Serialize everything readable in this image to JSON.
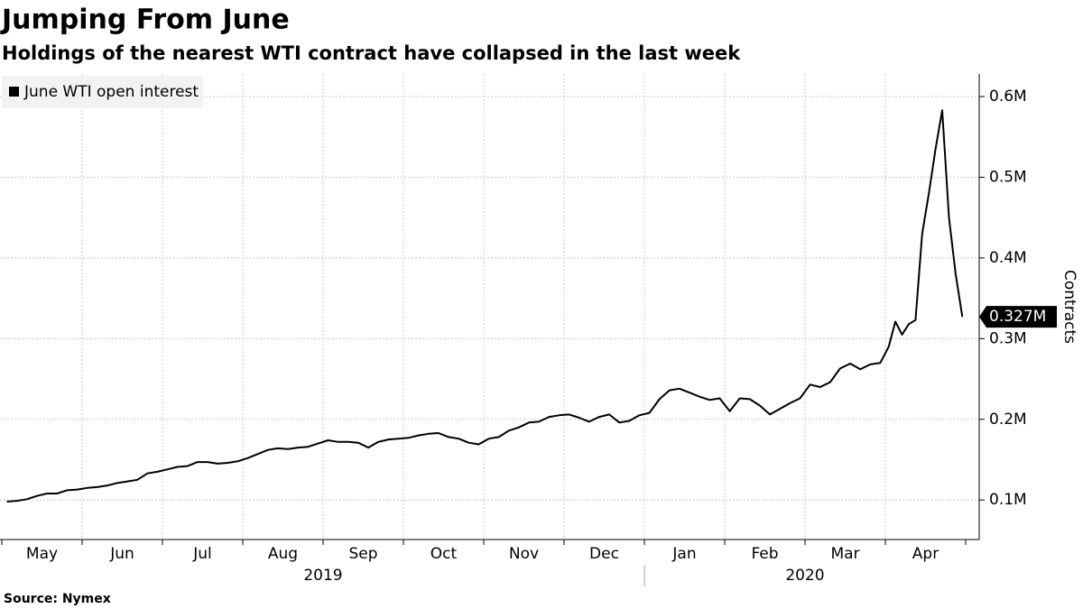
{
  "chart_data": {
    "type": "line",
    "title": "Jumping From June",
    "subtitle": "Holdings of the nearest WTI contract have collapsed in the last week",
    "y_label": "Contracts",
    "source": "Source: Nymex",
    "grid": true,
    "legend": "top-left",
    "xticks": [
      {
        "value": "2019-05",
        "label": "May"
      },
      {
        "value": "2019-06",
        "label": "Jun"
      },
      {
        "value": "2019-07",
        "label": "Jul"
      },
      {
        "value": "2019-08",
        "label": "Aug"
      },
      {
        "value": "2019-09",
        "label": "Sep"
      },
      {
        "value": "2019-10",
        "label": "Oct"
      },
      {
        "value": "2019-11",
        "label": "Nov"
      },
      {
        "value": "2019-12",
        "label": "Dec"
      },
      {
        "value": "2020-01",
        "label": "Jan"
      },
      {
        "value": "2020-02",
        "label": "Feb"
      },
      {
        "value": "2020-03",
        "label": "Mar"
      },
      {
        "value": "2020-04",
        "label": "Apr"
      }
    ],
    "years": [
      "2019",
      "2020"
    ],
    "ylim": [
      0.051,
      0.628
    ],
    "yticks": [
      {
        "value": 0.1,
        "label": "0.1M"
      },
      {
        "value": 0.2,
        "label": "0.2M"
      },
      {
        "value": 0.3,
        "label": "0.3M"
      },
      {
        "value": 0.4,
        "label": "0.4M"
      },
      {
        "value": 0.5,
        "label": "0.5M"
      },
      {
        "value": 0.6,
        "label": "0.6M"
      }
    ],
    "x": [
      "2019-05",
      "2019-05",
      "2019-05",
      "2019-05",
      "2019-05",
      "2019-05",
      "2019-05",
      "2019-05",
      "2019-06",
      "2019-06",
      "2019-06",
      "2019-06",
      "2019-06",
      "2019-06",
      "2019-06",
      "2019-06",
      "2019-07",
      "2019-07",
      "2019-07",
      "2019-07",
      "2019-07",
      "2019-07",
      "2019-07",
      "2019-07",
      "2019-08",
      "2019-08",
      "2019-08",
      "2019-08",
      "2019-08",
      "2019-08",
      "2019-08",
      "2019-08",
      "2019-09",
      "2019-09",
      "2019-09",
      "2019-09",
      "2019-09",
      "2019-09",
      "2019-09",
      "2019-09",
      "2019-10",
      "2019-10",
      "2019-10",
      "2019-10",
      "2019-10",
      "2019-10",
      "2019-10",
      "2019-10",
      "2019-11",
      "2019-11",
      "2019-11",
      "2019-11",
      "2019-11",
      "2019-11",
      "2019-11",
      "2019-11",
      "2019-12",
      "2019-12",
      "2019-12",
      "2019-12",
      "2019-12",
      "2019-12",
      "2019-12",
      "2019-12",
      "2020-01",
      "2020-01",
      "2020-01",
      "2020-01",
      "2020-01",
      "2020-01",
      "2020-01",
      "2020-01",
      "2020-02",
      "2020-02",
      "2020-02",
      "2020-02",
      "2020-02",
      "2020-02",
      "2020-02",
      "2020-02",
      "2020-03",
      "2020-03",
      "2020-03",
      "2020-03",
      "2020-03",
      "2020-03",
      "2020-03",
      "2020-03",
      "2020-04",
      "2020-04",
      "2020-04",
      "2020-04",
      "2020-04",
      "2020-04",
      "2020-04",
      "2020-04",
      "2020-04",
      "2020-04",
      "2020-04",
      "2020-04"
    ],
    "series": [
      {
        "name": "June WTI open interest",
        "color": "#000000",
        "values": [
          0.098,
          0.099,
          0.101,
          0.105,
          0.108,
          0.108,
          0.112,
          0.113,
          0.115,
          0.116,
          0.118,
          0.121,
          0.123,
          0.125,
          0.133,
          0.135,
          0.138,
          0.141,
          0.142,
          0.147,
          0.147,
          0.145,
          0.146,
          0.148,
          0.152,
          0.157,
          0.162,
          0.164,
          0.163,
          0.165,
          0.166,
          0.17,
          0.174,
          0.172,
          0.172,
          0.171,
          0.165,
          0.172,
          0.175,
          0.176,
          0.177,
          0.18,
          0.182,
          0.183,
          0.178,
          0.176,
          0.171,
          0.169,
          0.176,
          0.178,
          0.186,
          0.19,
          0.196,
          0.197,
          0.203,
          0.205,
          0.206,
          0.202,
          0.197,
          0.203,
          0.206,
          0.196,
          0.198,
          0.205,
          0.208,
          0.225,
          0.236,
          0.238,
          0.233,
          0.228,
          0.224,
          0.226,
          0.21,
          0.226,
          0.225,
          0.217,
          0.206,
          0.213,
          0.22,
          0.226,
          0.243,
          0.24,
          0.246,
          0.263,
          0.269,
          0.262,
          0.268,
          0.27,
          0.29,
          0.321,
          0.305,
          0.318,
          0.323,
          0.43,
          0.48,
          0.535,
          0.583,
          0.45,
          0.38,
          0.327
        ],
        "value_labels": [
          null,
          null,
          null,
          null,
          null,
          null,
          null,
          null,
          null,
          null,
          null,
          null,
          null,
          null,
          null,
          null,
          null,
          null,
          null,
          null,
          null,
          null,
          null,
          null,
          null,
          null,
          null,
          null,
          null,
          null,
          null,
          null,
          null,
          null,
          null,
          null,
          null,
          null,
          null,
          null,
          null,
          null,
          null,
          null,
          null,
          null,
          null,
          null,
          null,
          null,
          null,
          null,
          null,
          null,
          null,
          null,
          null,
          null,
          null,
          null,
          null,
          null,
          null,
          null,
          null,
          null,
          null,
          null,
          null,
          null,
          null,
          null,
          null,
          null,
          null,
          null,
          null,
          null,
          null,
          null,
          null,
          null,
          null,
          null,
          null,
          null,
          null,
          null,
          null,
          null,
          null,
          null,
          null,
          null,
          null,
          null,
          null,
          null,
          null,
          "0.327M"
        ]
      }
    ]
  }
}
